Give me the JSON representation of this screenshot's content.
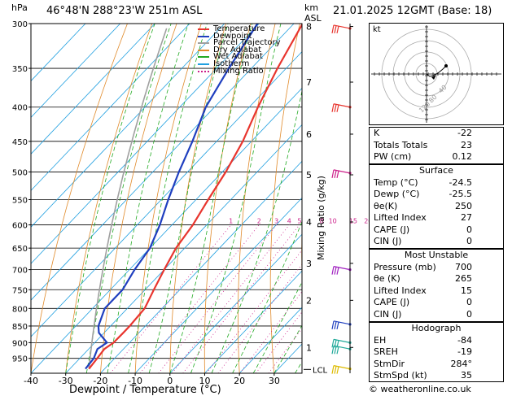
{
  "header": {
    "location": "46°48'N  288°23'W  251m  ASL",
    "datetime": "21.01.2025  12GMT  (Base: 18)",
    "hpa_label": "hPa",
    "km_label": "km",
    "asl_label": "ASL"
  },
  "legend": [
    "Temperature",
    "Dewpoint",
    "Parcel Trajectory",
    "Dry Adiabat",
    "Wet Adiabat",
    "Isotherm",
    "Mixing Ratio"
  ],
  "colors": {
    "temperature": "#e8352e",
    "dewpoint": "#1f3fbf",
    "parcel": "#a0a0a0",
    "dry_adiabat": "#e08a2a",
    "wet_adiabat": "#22aa22",
    "isotherm": "#21a0e0",
    "mixing_ratio": "#cc1f8a"
  },
  "chart_data": {
    "type": "line",
    "title": "",
    "xlabel": "Dewpoint / Temperature (°C)",
    "ylabel": "hPa",
    "y2label": "Mixing Ratio (g/kg)",
    "xlim": [
      -40,
      38
    ],
    "ylim": [
      1000,
      300
    ],
    "x_ticks": [
      -40,
      -30,
      -20,
      -10,
      0,
      10,
      20,
      30
    ],
    "pressure_levels": [
      300,
      350,
      400,
      450,
      500,
      550,
      600,
      650,
      700,
      750,
      800,
      850,
      900,
      950
    ],
    "km_ticks": [
      "1",
      "2",
      "3",
      "4",
      "5",
      "6",
      "7",
      "8"
    ],
    "km_pressures": [
      915,
      778,
      685,
      594,
      505,
      439,
      367,
      303
    ],
    "lcl_label": "LCL",
    "lcl_pressure": 987,
    "mixing_ratio_labels": [
      "1",
      "2",
      "3",
      "4",
      "5",
      "8",
      "10",
      "15",
      "20",
      "25"
    ],
    "series": [
      {
        "name": "Temperature",
        "pressures": [
          985,
          950,
          920,
          900,
          870,
          850,
          800,
          750,
          700,
          650,
          600,
          550,
          500,
          450,
          400,
          350,
          300
        ],
        "values": [
          -24.5,
          -25,
          -25.5,
          -24.6,
          -24.5,
          -24.5,
          -25,
          -27.5,
          -30,
          -32.5,
          -34,
          -36.5,
          -39,
          -42.5,
          -47.5,
          -52.5,
          -57.5
        ]
      },
      {
        "name": "Dewpoint",
        "pressures": [
          985,
          950,
          920,
          900,
          870,
          850,
          800,
          750,
          700,
          650,
          600,
          550,
          500,
          450,
          400,
          350,
          300
        ],
        "values": [
          -25.5,
          -26,
          -27.5,
          -26.5,
          -31.5,
          -33.5,
          -36.5,
          -36.5,
          -38.5,
          -40,
          -43.5,
          -48,
          -52.5,
          -57,
          -62.5,
          -66.5,
          -70.5
        ]
      }
    ],
    "wind_barbs_pressures": [
      305,
      400,
      502,
      700,
      845,
      900,
      920,
      985
    ]
  },
  "indices": {
    "rows": [
      {
        "k": "K",
        "v": "-22"
      },
      {
        "k": "Totals Totals",
        "v": "23"
      },
      {
        "k": "PW (cm)",
        "v": "0.12"
      }
    ]
  },
  "surface": {
    "title": "Surface",
    "rows": [
      {
        "k": "Temp (°C)",
        "v": "-24.5"
      },
      {
        "k": "Dewp (°C)",
        "v": "-25.5"
      },
      {
        "k": "θe(K)",
        "v": "250"
      },
      {
        "k": "Lifted Index",
        "v": "27"
      },
      {
        "k": "CAPE (J)",
        "v": "0"
      },
      {
        "k": "CIN (J)",
        "v": "0"
      }
    ]
  },
  "most_unstable": {
    "title": "Most Unstable",
    "rows": [
      {
        "k": "Pressure (mb)",
        "v": "700"
      },
      {
        "k": "θe (K)",
        "v": "265"
      },
      {
        "k": "Lifted Index",
        "v": "15"
      },
      {
        "k": "CAPE (J)",
        "v": "0"
      },
      {
        "k": "CIN (J)",
        "v": "0"
      }
    ]
  },
  "hodograph": {
    "title": "Hodograph",
    "label": "kt",
    "ring_labels": [
      "40",
      "80",
      "120"
    ],
    "rows": [
      {
        "k": "EH",
        "v": "-84"
      },
      {
        "k": "SREH",
        "v": "-19"
      },
      {
        "k": "StmDir",
        "v": "284°"
      },
      {
        "k": "StmSpd (kt)",
        "v": "35"
      }
    ]
  },
  "credit": "© weatheronline.co.uk"
}
